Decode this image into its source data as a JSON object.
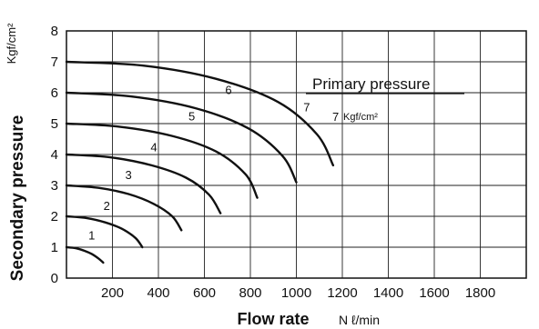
{
  "chart_data": {
    "type": "line",
    "title": "",
    "xlabel": "Flow rate",
    "xunit": "N ℓ/min",
    "ylabel": "Secondary pressure",
    "yunit": "Kgf/cm²",
    "xlim": [
      0,
      2000
    ],
    "ylim": [
      0,
      8
    ],
    "xticks": [
      200,
      400,
      600,
      800,
      1000,
      1200,
      1400,
      1600,
      1800
    ],
    "yticks": [
      0,
      1,
      2,
      3,
      4,
      5,
      6,
      7,
      8
    ],
    "grid": true,
    "annotation": {
      "text": "Primary pressure",
      "value_label": "7",
      "unit_label": "Kgf/cm²"
    },
    "series": [
      {
        "name": "1",
        "x": [
          0,
          40,
          80,
          110,
          140,
          160
        ],
        "y": [
          1.0,
          0.97,
          0.88,
          0.78,
          0.63,
          0.5
        ]
      },
      {
        "name": "2",
        "x": [
          0,
          90,
          170,
          240,
          300,
          330
        ],
        "y": [
          2.0,
          1.94,
          1.8,
          1.6,
          1.3,
          1.0
        ]
      },
      {
        "name": "3",
        "x": [
          0,
          140,
          270,
          380,
          460,
          500
        ],
        "y": [
          3.0,
          2.92,
          2.72,
          2.4,
          2.0,
          1.55
        ]
      },
      {
        "name": "4",
        "x": [
          0,
          190,
          370,
          520,
          620,
          670
        ],
        "y": [
          4.0,
          3.91,
          3.65,
          3.25,
          2.7,
          2.1
        ]
      },
      {
        "name": "5",
        "x": [
          0,
          230,
          460,
          650,
          780,
          830
        ],
        "y": [
          5.0,
          4.9,
          4.6,
          4.1,
          3.35,
          2.6
        ]
      },
      {
        "name": "6",
        "x": [
          0,
          280,
          560,
          790,
          940,
          1000
        ],
        "y": [
          6.0,
          5.88,
          5.5,
          4.85,
          3.95,
          3.1
        ]
      },
      {
        "name": "7",
        "x": [
          0,
          330,
          650,
          920,
          1090,
          1160
        ],
        "y": [
          7.0,
          6.88,
          6.45,
          5.7,
          4.65,
          3.65
        ]
      }
    ],
    "series_label_positions": {
      "1": [
        110,
        1.25
      ],
      "2": [
        175,
        2.2
      ],
      "3": [
        270,
        3.2
      ],
      "4": [
        380,
        4.1
      ],
      "5": [
        545,
        5.1
      ],
      "6": [
        705,
        5.95
      ],
      "7": [
        1045,
        5.4
      ]
    }
  }
}
